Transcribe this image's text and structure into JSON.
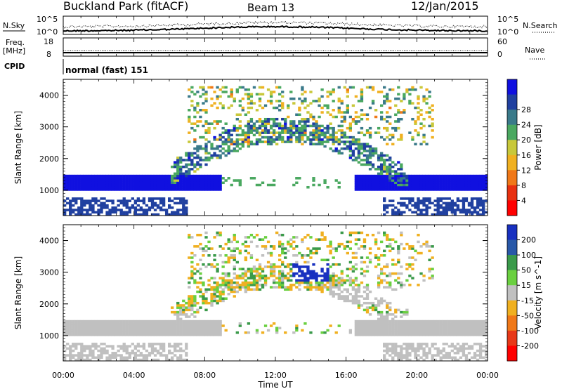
{
  "header": {
    "title": "Buckland Park (fitACF)",
    "beam": "Beam 13",
    "date": "12/Jan/2015"
  },
  "summary": {
    "nsky_label": "N.Sky",
    "nsearch_label": "N.Search",
    "freq_label_1": "Freq.",
    "freq_label_2": "[MHz]",
    "nave_label": "Nave",
    "cpid_label": "CPID",
    "cpid_text": "normal (fast) 151",
    "noise_tick_top": "10^5",
    "noise_tick_bottom": "10^0",
    "freq_ticks": [
      "18",
      "8"
    ],
    "nave_ticks": [
      "60",
      "0"
    ]
  },
  "chart_data": [
    {
      "type": "heatmap",
      "name": "power",
      "ylabel": "Slant Range [km]",
      "yticks": [
        "1000",
        "2000",
        "3000",
        "4000"
      ],
      "ylim": [
        200,
        4500
      ],
      "colorbar_label": "Power [dB]",
      "colorbar_ticks": [
        "4",
        "8",
        "12",
        "16",
        "20",
        "24",
        "28"
      ],
      "colorbar_colors": [
        "#1010e0",
        "#2040a0",
        "#3a7a8a",
        "#4aa860",
        "#c8c83a",
        "#f0b020",
        "#f07818",
        "#e83010",
        "#ff0000"
      ]
    },
    {
      "type": "heatmap",
      "name": "velocity",
      "ylabel": "Slant Range [km]",
      "yticks": [
        "1000",
        "2000",
        "3000",
        "4000"
      ],
      "ylim": [
        200,
        4500
      ],
      "colorbar_label": "Velocity [m s^-1]",
      "colorbar_ticks": [
        "200",
        "100",
        "50",
        "15",
        "-15",
        "-50",
        "-100",
        "-200"
      ],
      "colorbar_colors": [
        "#1830c0",
        "#2858a8",
        "#3a9a4a",
        "#6ad040",
        "#c0c0c0",
        "#f0b020",
        "#f07818",
        "#e83818",
        "#ff0000"
      ]
    }
  ],
  "xaxis": {
    "label": "Time UT",
    "ticks": [
      "00:00",
      "04:00",
      "08:00",
      "12:00",
      "16:00",
      "20:00",
      "00:00"
    ]
  }
}
